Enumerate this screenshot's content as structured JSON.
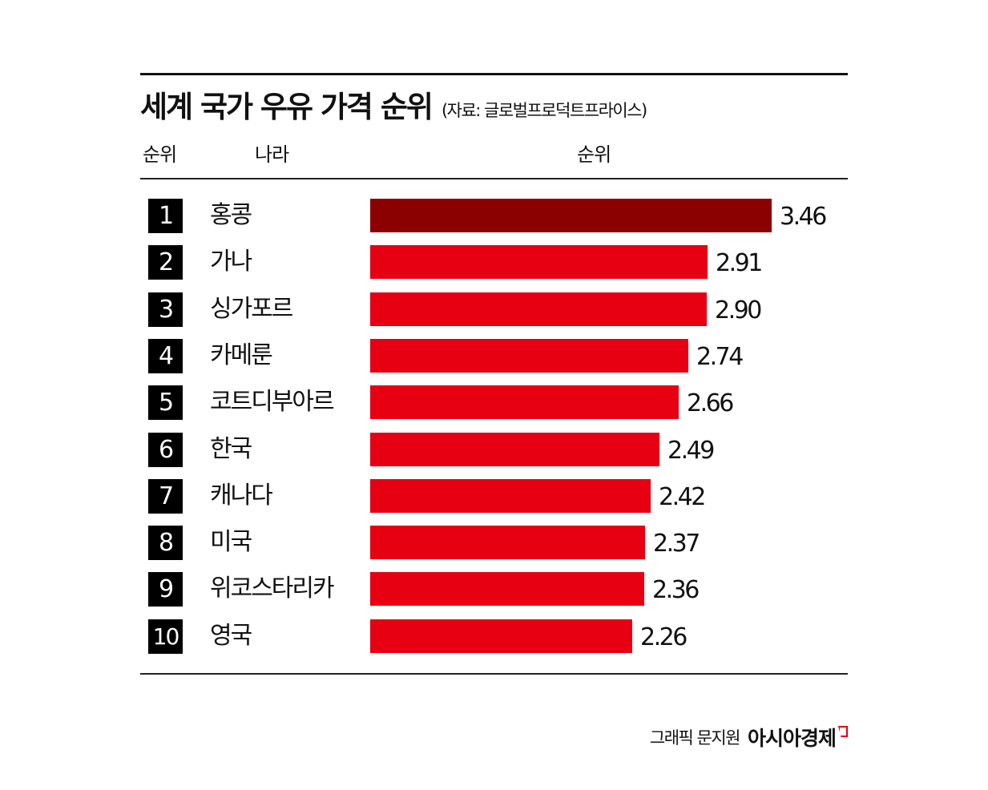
{
  "header": {
    "title": "세계 국가 우유 가격 순위",
    "source": "(자료: 글로벌프로덕트프라이스)"
  },
  "columns": {
    "rank": "순위",
    "country": "나라",
    "value": "순위"
  },
  "rows": [
    {
      "rank": "1",
      "country": "홍콩",
      "value": "3.46"
    },
    {
      "rank": "2",
      "country": "가나",
      "value": "2.91"
    },
    {
      "rank": "3",
      "country": "싱가포르",
      "value": "2.90"
    },
    {
      "rank": "4",
      "country": "카메룬",
      "value": "2.74"
    },
    {
      "rank": "5",
      "country": "코트디부아르",
      "value": "2.66"
    },
    {
      "rank": "6",
      "country": "한국",
      "value": "2.49"
    },
    {
      "rank": "7",
      "country": "캐나다",
      "value": "2.42"
    },
    {
      "rank": "8",
      "country": "미국",
      "value": "2.37"
    },
    {
      "rank": "9",
      "country": "위코스타리카",
      "value": "2.36"
    },
    {
      "rank": "10",
      "country": "영국",
      "value": "2.26"
    }
  ],
  "footer": {
    "credit": "그래픽 문지원",
    "brand": "아시아경제"
  },
  "colors": {
    "top_bar": "#8b0000",
    "bar": "#e60012",
    "rank_box": "#000000"
  },
  "chart_data": {
    "type": "bar",
    "orientation": "horizontal",
    "title": "세계 국가 우유 가격 순위",
    "subtitle": "(자료: 글로벌프로덕트프라이스)",
    "xlabel": "순위",
    "ylabel": "나라",
    "categories": [
      "홍콩",
      "가나",
      "싱가포르",
      "카메룬",
      "코트디부아르",
      "한국",
      "캐나다",
      "미국",
      "위코스타리카",
      "영국"
    ],
    "ranks": [
      1,
      2,
      3,
      4,
      5,
      6,
      7,
      8,
      9,
      10
    ],
    "values": [
      3.46,
      2.91,
      2.9,
      2.74,
      2.66,
      2.49,
      2.42,
      2.37,
      2.36,
      2.26
    ],
    "highlight": "홍콩",
    "grid": false,
    "legend": null
  }
}
